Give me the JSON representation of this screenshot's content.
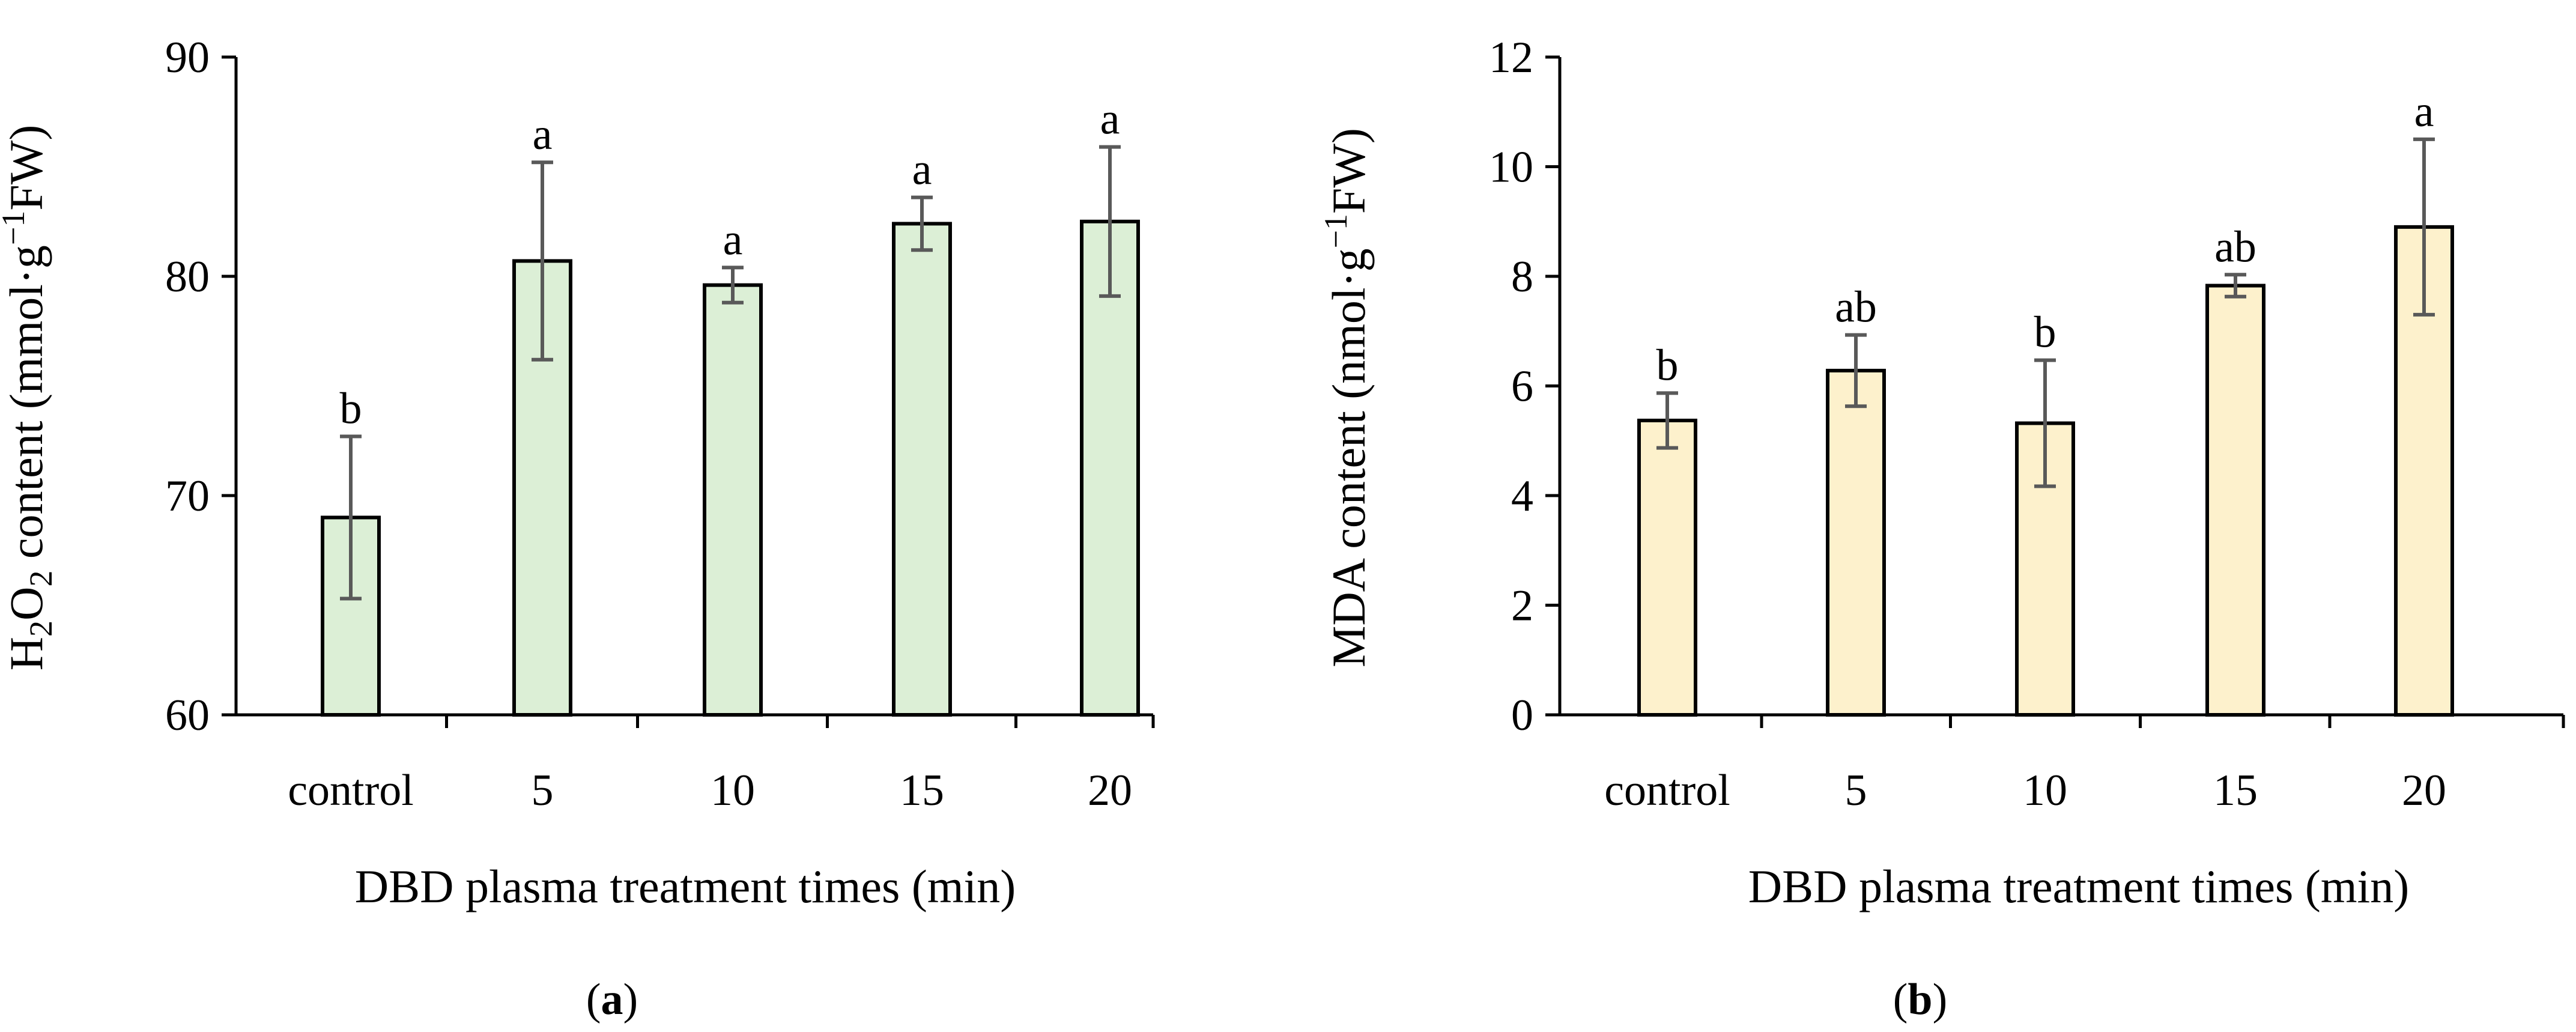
{
  "chart_data": [
    {
      "type": "bar",
      "panel_label": "a",
      "categories": [
        "control",
        "5",
        "10",
        "15",
        "20"
      ],
      "values": [
        69.0,
        80.7,
        79.6,
        82.4,
        82.5
      ],
      "errors": [
        3.7,
        4.5,
        0.8,
        1.2,
        3.4
      ],
      "significance": [
        "b",
        "a",
        "a",
        "a",
        "a"
      ],
      "ylim": [
        60,
        90
      ],
      "yticks": [
        60,
        70,
        80,
        90
      ],
      "ylabel": {
        "main": "H",
        "sub1": "2",
        "mid": "O",
        "sub2": "2",
        "rest": " content (mmol·g",
        "sup": "−1",
        "end": "FW)"
      },
      "xlabel": "DBD plasma treatment times (min)",
      "bar_color": "#dcefd6",
      "bar_edge": "#000000",
      "error_color": "#595959"
    },
    {
      "type": "bar",
      "panel_label": "b",
      "categories": [
        "control",
        "5",
        "10",
        "15",
        "20"
      ],
      "values": [
        5.37,
        6.28,
        5.32,
        7.83,
        8.9
      ],
      "errors": [
        0.5,
        0.65,
        1.15,
        0.2,
        1.6
      ],
      "significance": [
        "b",
        "ab",
        "b",
        "ab",
        "a"
      ],
      "ylim": [
        0,
        12
      ],
      "yticks": [
        0,
        2,
        4,
        6,
        8,
        10,
        12
      ],
      "ylabel": {
        "main": "MDA content (nmol·g",
        "sup": "−1",
        "end": "FW)"
      },
      "xlabel": "DBD plasma treatment times (min)",
      "bar_color": "#fdf1cc",
      "bar_edge": "#000000",
      "error_color": "#595959"
    }
  ]
}
